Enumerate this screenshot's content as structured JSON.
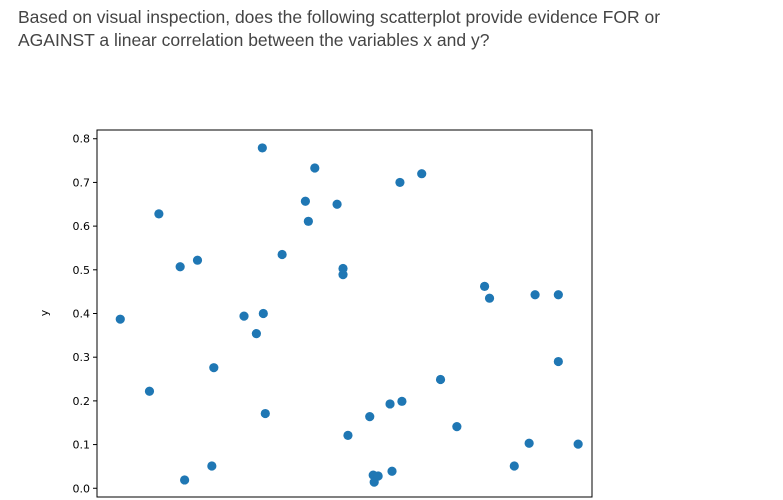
{
  "question": {
    "line1": "Based on visual inspection, does the following scatterplot provide evidence FOR or",
    "line2": "AGAINST a linear correlation between the variables x and y?"
  },
  "chart_data": {
    "type": "scatter",
    "title": "",
    "xlabel": "",
    "ylabel": "y",
    "xlim": [
      0,
      1
    ],
    "ylim": [
      -0.02,
      0.82
    ],
    "yticks": [
      "0.0",
      "0.1",
      "0.2",
      "0.3",
      "0.4",
      "0.5",
      "0.6",
      "0.7",
      "0.8"
    ],
    "ytick_values": [
      0.0,
      0.1,
      0.2,
      0.3,
      0.4,
      0.5,
      0.6,
      0.7,
      0.8
    ],
    "grid": false,
    "color": "#1f77b4",
    "points": [
      {
        "x": 0.047,
        "y": 0.387
      },
      {
        "x": 0.106,
        "y": 0.222
      },
      {
        "x": 0.125,
        "y": 0.628
      },
      {
        "x": 0.168,
        "y": 0.507
      },
      {
        "x": 0.177,
        "y": 0.019
      },
      {
        "x": 0.203,
        "y": 0.522
      },
      {
        "x": 0.232,
        "y": 0.051
      },
      {
        "x": 0.236,
        "y": 0.276
      },
      {
        "x": 0.297,
        "y": 0.394
      },
      {
        "x": 0.322,
        "y": 0.354
      },
      {
        "x": 0.334,
        "y": 0.779
      },
      {
        "x": 0.336,
        "y": 0.4
      },
      {
        "x": 0.34,
        "y": 0.171
      },
      {
        "x": 0.374,
        "y": 0.535
      },
      {
        "x": 0.421,
        "y": 0.657
      },
      {
        "x": 0.427,
        "y": 0.611
      },
      {
        "x": 0.44,
        "y": 0.733
      },
      {
        "x": 0.485,
        "y": 0.65
      },
      {
        "x": 0.497,
        "y": 0.503
      },
      {
        "x": 0.497,
        "y": 0.489
      },
      {
        "x": 0.507,
        "y": 0.121
      },
      {
        "x": 0.551,
        "y": 0.164
      },
      {
        "x": 0.558,
        "y": 0.03
      },
      {
        "x": 0.56,
        "y": 0.014
      },
      {
        "x": 0.568,
        "y": 0.028
      },
      {
        "x": 0.592,
        "y": 0.193
      },
      {
        "x": 0.596,
        "y": 0.039
      },
      {
        "x": 0.616,
        "y": 0.199
      },
      {
        "x": 0.612,
        "y": 0.7
      },
      {
        "x": 0.656,
        "y": 0.72
      },
      {
        "x": 0.694,
        "y": 0.249
      },
      {
        "x": 0.727,
        "y": 0.141
      },
      {
        "x": 0.783,
        "y": 0.462
      },
      {
        "x": 0.793,
        "y": 0.435
      },
      {
        "x": 0.843,
        "y": 0.051
      },
      {
        "x": 0.873,
        "y": 0.103
      },
      {
        "x": 0.885,
        "y": 0.443
      },
      {
        "x": 0.932,
        "y": 0.443
      },
      {
        "x": 0.932,
        "y": 0.29
      },
      {
        "x": 0.972,
        "y": 0.101
      }
    ]
  }
}
